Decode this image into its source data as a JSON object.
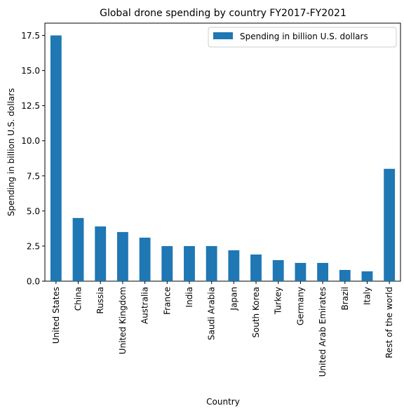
{
  "chart_data": {
    "type": "bar",
    "title": "Global drone spending by country FY2017-FY2021",
    "xlabel": "Country",
    "ylabel": "Spending in billion U.S. dollars",
    "categories": [
      "United States",
      "China",
      "Russia",
      "United Kingdom",
      "Australia",
      "France",
      "India",
      "Saudi Arabia",
      "Japan",
      "South Korea",
      "Turkey",
      "Germany",
      "United Arab Emirates",
      "Brazil",
      "Italy",
      "Rest of the world"
    ],
    "series": [
      {
        "name": "Spending in billion U.S. dollars",
        "values": [
          17.5,
          4.5,
          3.9,
          3.5,
          3.1,
          2.5,
          2.5,
          2.5,
          2.2,
          1.9,
          1.5,
          1.3,
          1.3,
          0.8,
          0.7,
          8.0
        ],
        "color": "#1f77b4"
      }
    ],
    "ylim": [
      0,
      18.375
    ],
    "yticks": [
      0.0,
      2.5,
      5.0,
      7.5,
      10.0,
      12.5,
      15.0,
      17.5
    ],
    "ytick_labels": [
      "0.0",
      "2.5",
      "5.0",
      "7.5",
      "10.0",
      "12.5",
      "15.0",
      "17.5"
    ],
    "legend_position": "upper right",
    "grid": false
  }
}
